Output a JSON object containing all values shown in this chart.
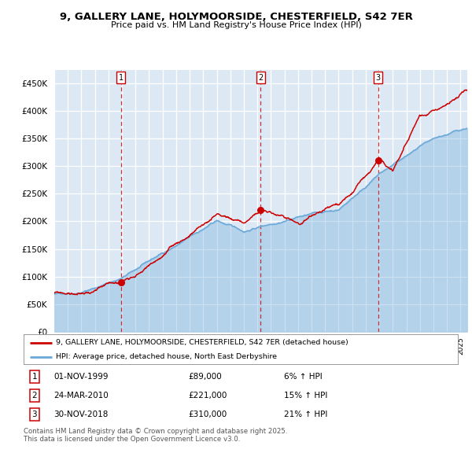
{
  "title_line1": "9, GALLERY LANE, HOLYMOORSIDE, CHESTERFIELD, S42 7ER",
  "title_line2": "Price paid vs. HM Land Registry's House Price Index (HPI)",
  "background_color": "#ffffff",
  "chart_bg_color": "#dce9f5",
  "grid_color": "#ffffff",
  "hpi_line_color": "#6aa8d8",
  "hpi_fill_color": "#b8d4eb",
  "price_line_color": "#cc0000",
  "sale_marker_color": "#cc0000",
  "vline_color": "#cc0000",
  "ylim": [
    0,
    475000
  ],
  "yticks": [
    0,
    50000,
    100000,
    150000,
    200000,
    250000,
    300000,
    350000,
    400000,
    450000
  ],
  "ytick_labels": [
    "£0",
    "£50K",
    "£100K",
    "£150K",
    "£200K",
    "£250K",
    "£300K",
    "£350K",
    "£400K",
    "£450K"
  ],
  "legend_label_price": "9, GALLERY LANE, HOLYMOORSIDE, CHESTERFIELD, S42 7ER (detached house)",
  "legend_label_hpi": "HPI: Average price, detached house, North East Derbyshire",
  "sale1_date": "01-NOV-1999",
  "sale1_price": 89000,
  "sale1_pct": "6% ↑ HPI",
  "sale2_date": "24-MAR-2010",
  "sale2_price": 221000,
  "sale2_pct": "15% ↑ HPI",
  "sale3_date": "30-NOV-2018",
  "sale3_price": 310000,
  "sale3_pct": "21% ↑ HPI",
  "footer": "Contains HM Land Registry data © Crown copyright and database right 2025.\nThis data is licensed under the Open Government Licence v3.0.",
  "sale1_x": 1999.92,
  "sale2_x": 2010.23,
  "sale3_x": 2018.92,
  "xlim_left": 1995.0,
  "xlim_right": 2025.5
}
